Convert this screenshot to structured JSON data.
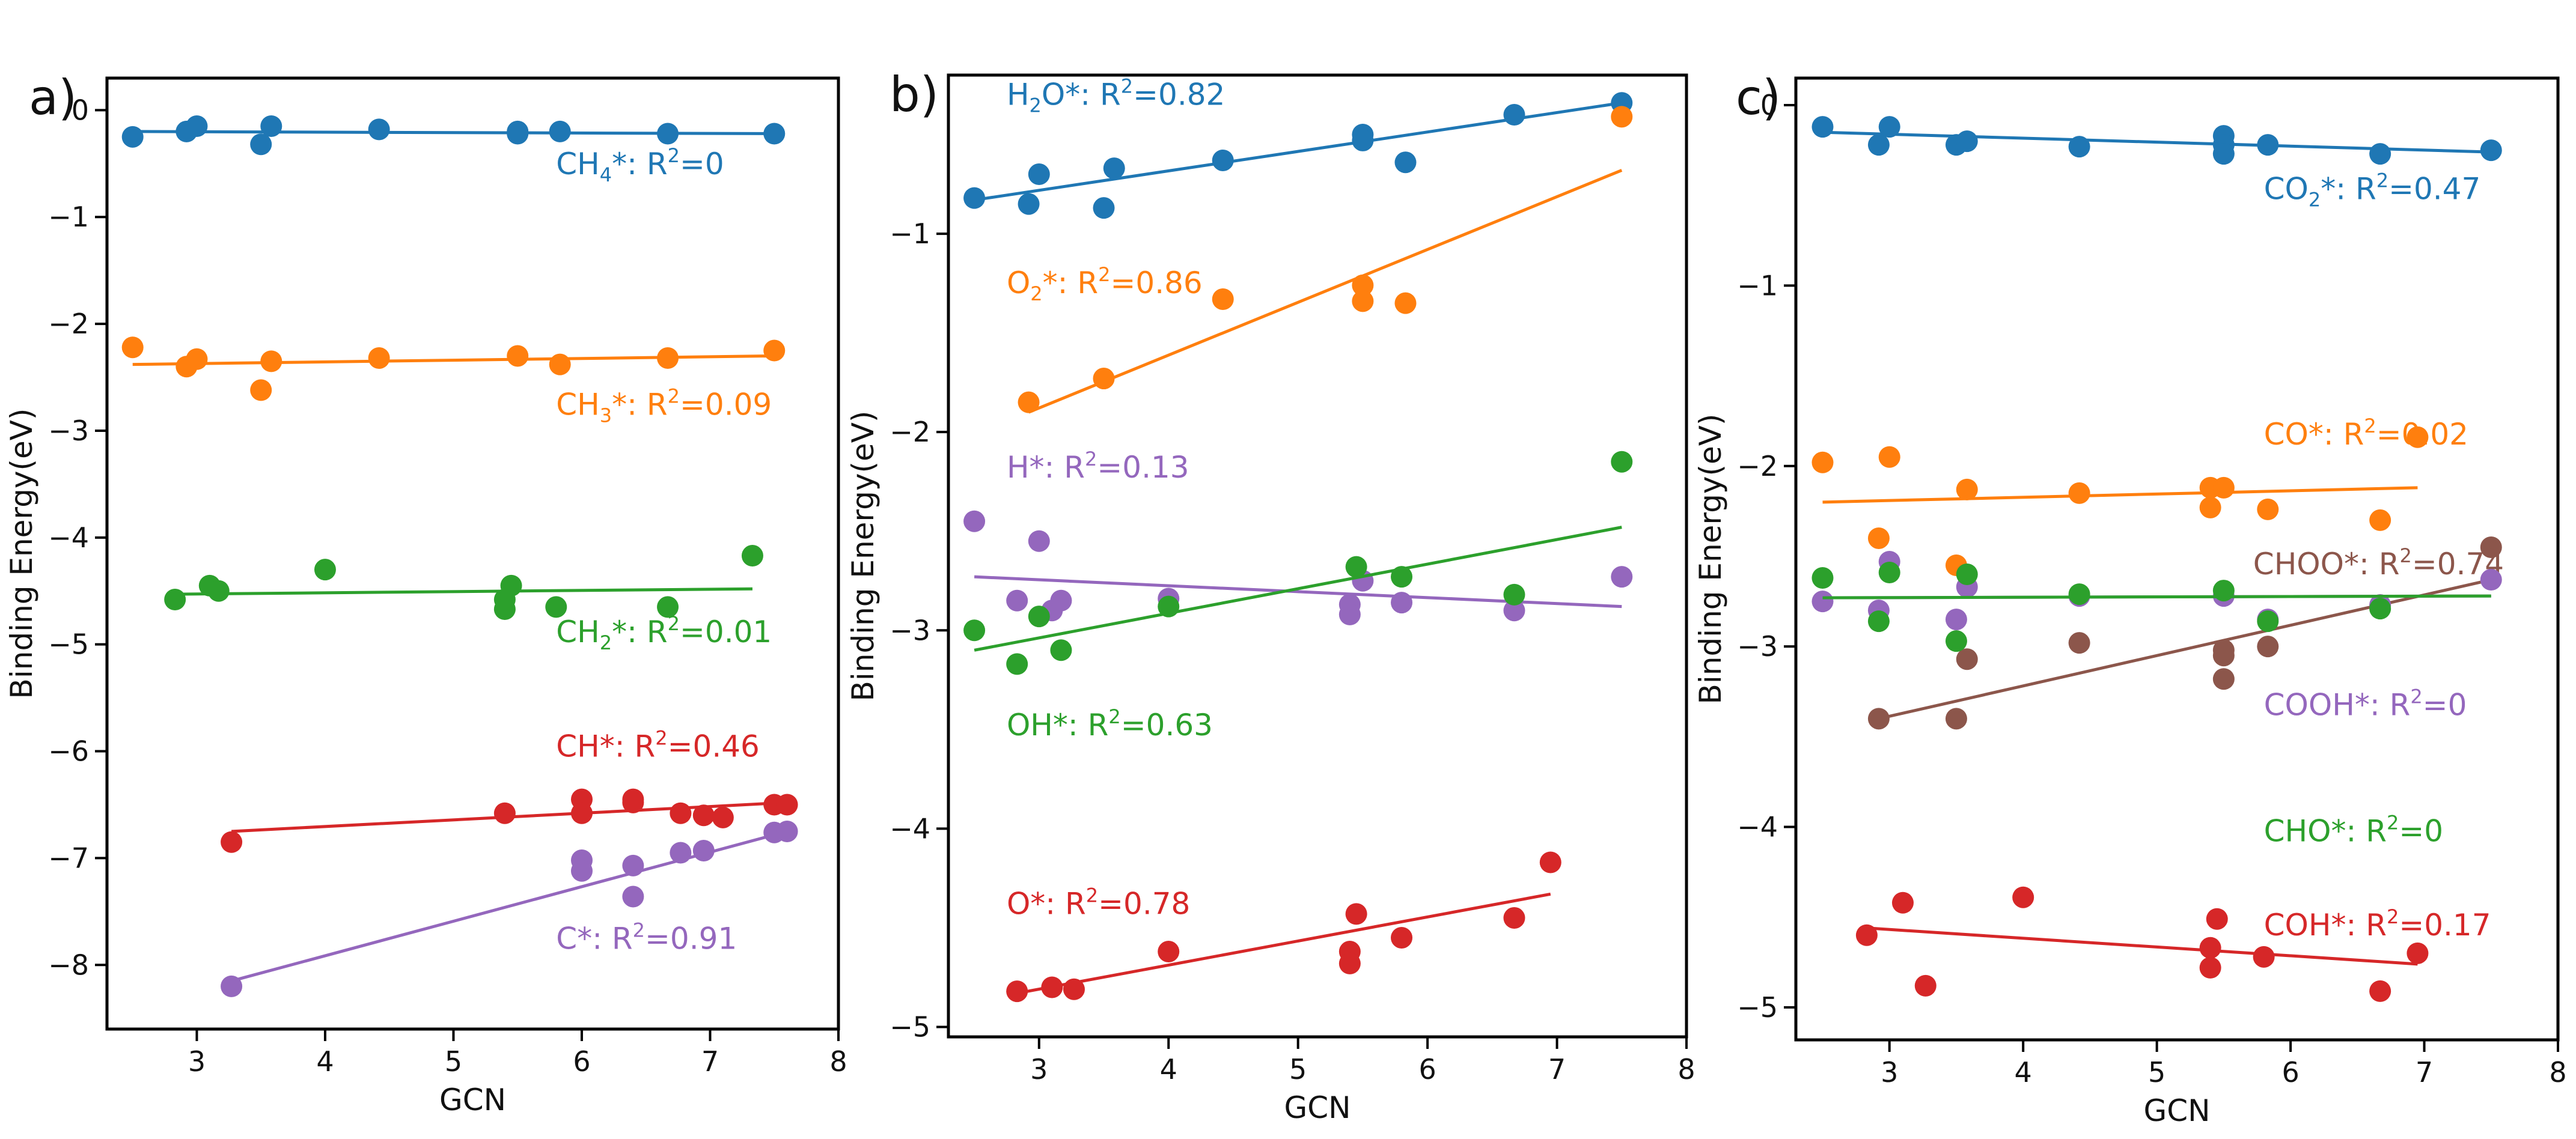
{
  "colors": {
    "blue": "#1f77b4",
    "orange": "#ff7f0e",
    "green": "#2ca02c",
    "red": "#d62728",
    "purple": "#9467bd",
    "brown": "#8c564b"
  },
  "chart_data": [
    {
      "type": "scatter",
      "panel_label": "a)",
      "xlabel": "GCN",
      "ylabel": "Binding Energy(eV)",
      "xlim": [
        2.3,
        8.0
      ],
      "ylim": [
        -8.6,
        0.3
      ],
      "xticks": [
        3,
        4,
        5,
        6,
        7,
        8
      ],
      "yticks": [
        0,
        -1,
        -2,
        -3,
        -4,
        -5,
        -6,
        -7,
        -8
      ],
      "xtick_labels": [
        "3",
        "4",
        "5",
        "6",
        "7",
        "8"
      ],
      "ytick_labels": [
        "0",
        "−1",
        "−2",
        "−3",
        "−4",
        "−5",
        "−6",
        "−7",
        "−8"
      ],
      "series": [
        {
          "name": "CH4*",
          "label": {
            "pre": "CH",
            "sub": "4",
            "mid": "*: R",
            "sup": "2",
            "post": "=0"
          },
          "label_pos": [
            5.8,
            -0.6
          ],
          "color": "blue",
          "x": [
            2.5,
            2.92,
            3.0,
            3.5,
            3.58,
            4.42,
            5.5,
            5.5,
            5.83,
            6.67,
            7.5
          ],
          "y": [
            -0.25,
            -0.2,
            -0.15,
            -0.32,
            -0.15,
            -0.18,
            -0.2,
            -0.22,
            -0.2,
            -0.22,
            -0.22
          ],
          "fit": [
            [
              2.5,
              -0.2
            ],
            [
              7.5,
              -0.22
            ]
          ]
        },
        {
          "name": "CH3*",
          "label": {
            "pre": "CH",
            "sub": "3",
            "mid": "*: R",
            "sup": "2",
            "post": "=0.09"
          },
          "label_pos": [
            5.8,
            -2.85
          ],
          "color": "orange",
          "x": [
            2.5,
            2.92,
            3.0,
            3.5,
            3.58,
            4.42,
            5.5,
            5.83,
            6.67,
            7.5
          ],
          "y": [
            -2.22,
            -2.4,
            -2.33,
            -2.62,
            -2.35,
            -2.32,
            -2.3,
            -2.38,
            -2.32,
            -2.25
          ],
          "fit": [
            [
              2.5,
              -2.38
            ],
            [
              7.5,
              -2.3
            ]
          ]
        },
        {
          "name": "CH2*",
          "label": {
            "pre": "CH",
            "sub": "2",
            "mid": "*: R",
            "sup": "2",
            "post": "=0.01"
          },
          "label_pos": [
            5.8,
            -4.98
          ],
          "color": "green",
          "x": [
            2.83,
            3.1,
            3.17,
            4.0,
            5.4,
            5.4,
            5.45,
            5.8,
            6.67,
            7.33
          ],
          "y": [
            -4.58,
            -4.45,
            -4.5,
            -4.3,
            -4.58,
            -4.67,
            -4.45,
            -4.65,
            -4.65,
            -4.17
          ],
          "fit": [
            [
              2.83,
              -4.53
            ],
            [
              7.33,
              -4.48
            ]
          ]
        },
        {
          "name": "CH*",
          "label": {
            "pre": "CH",
            "sub": "",
            "mid": "*: R",
            "sup": "2",
            "post": "=0.46"
          },
          "label_pos": [
            5.8,
            -6.05
          ],
          "color": "red",
          "x": [
            3.27,
            5.4,
            6.0,
            6.0,
            6.4,
            6.4,
            6.77,
            6.95,
            7.1,
            7.5,
            7.6
          ],
          "y": [
            -6.85,
            -6.58,
            -6.45,
            -6.58,
            -6.45,
            -6.48,
            -6.58,
            -6.6,
            -6.62,
            -6.5,
            -6.5
          ],
          "fit": [
            [
              3.27,
              -6.75
            ],
            [
              7.6,
              -6.48
            ]
          ]
        },
        {
          "name": "C*",
          "label": {
            "pre": "C",
            "sub": "",
            "mid": "*: R",
            "sup": "2",
            "post": "=0.91"
          },
          "label_pos": [
            5.8,
            -7.85
          ],
          "color": "purple",
          "x": [
            3.27,
            6.0,
            6.0,
            6.4,
            6.4,
            6.77,
            6.95,
            7.5,
            7.6
          ],
          "y": [
            -8.2,
            -7.02,
            -7.12,
            -7.07,
            -7.36,
            -6.95,
            -6.93,
            -6.76,
            -6.75
          ],
          "fit": [
            [
              3.27,
              -8.15
            ],
            [
              7.6,
              -6.75
            ]
          ]
        }
      ]
    },
    {
      "type": "scatter",
      "panel_label": "b)",
      "xlabel": "GCN",
      "ylabel": "Binding Energy(eV)",
      "xlim": [
        2.3,
        8.0
      ],
      "ylim": [
        -5.05,
        -0.2
      ],
      "xticks": [
        3,
        4,
        5,
        6,
        7,
        8
      ],
      "yticks": [
        -1,
        -2,
        -3,
        -4,
        -5
      ],
      "xtick_labels": [
        "3",
        "4",
        "5",
        "6",
        "7",
        "8"
      ],
      "ytick_labels": [
        "−1",
        "−2",
        "−3",
        "−4",
        "−5"
      ],
      "series": [
        {
          "name": "H2O*",
          "label": {
            "pre": "H",
            "sub": "2",
            "mid": "O*: R",
            "sup": "2",
            "post": "=0.82"
          },
          "label_pos": [
            2.75,
            -0.35
          ],
          "color": "blue",
          "x": [
            2.5,
            2.92,
            3.0,
            3.5,
            3.58,
            4.42,
            5.5,
            5.5,
            5.83,
            6.67,
            7.5
          ],
          "y": [
            -0.82,
            -0.85,
            -0.7,
            -0.87,
            -0.67,
            -0.63,
            -0.5,
            -0.53,
            -0.64,
            -0.4,
            -0.34
          ],
          "fit": [
            [
              2.5,
              -0.83
            ],
            [
              7.5,
              -0.34
            ]
          ]
        },
        {
          "name": "O2*",
          "label": {
            "pre": "O",
            "sub": "2",
            "mid": "*: R",
            "sup": "2",
            "post": "=0.86"
          },
          "label_pos": [
            2.75,
            -1.3
          ],
          "color": "orange",
          "x": [
            2.92,
            3.5,
            4.42,
            5.5,
            5.5,
            5.83,
            7.5
          ],
          "y": [
            -1.85,
            -1.73,
            -1.33,
            -1.26,
            -1.34,
            -1.35,
            -0.41
          ],
          "fit": [
            [
              2.92,
              -1.9
            ],
            [
              7.5,
              -0.68
            ]
          ]
        },
        {
          "name": "H*",
          "label": {
            "pre": "H",
            "sub": "",
            "mid": "*: R",
            "sup": "2",
            "post": "=0.13"
          },
          "label_pos": [
            2.75,
            -2.23
          ],
          "color": "purple",
          "x": [
            2.5,
            2.83,
            3.0,
            3.1,
            3.17,
            4.0,
            5.4,
            5.4,
            5.5,
            5.8,
            6.67,
            7.5
          ],
          "y": [
            -2.45,
            -2.85,
            -2.55,
            -2.9,
            -2.85,
            -2.84,
            -2.87,
            -2.92,
            -2.75,
            -2.86,
            -2.9,
            -2.73
          ],
          "fit": [
            [
              2.5,
              -2.73
            ],
            [
              7.5,
              -2.88
            ]
          ]
        },
        {
          "name": "OH*",
          "label": {
            "pre": "OH",
            "sub": "",
            "mid": "*: R",
            "sup": "2",
            "post": "=0.63"
          },
          "label_pos": [
            2.75,
            -3.53
          ],
          "color": "green",
          "x": [
            2.5,
            2.83,
            3.0,
            3.17,
            4.0,
            5.45,
            5.8,
            6.67,
            7.5
          ],
          "y": [
            -3.0,
            -3.17,
            -2.93,
            -3.1,
            -2.88,
            -2.68,
            -2.73,
            -2.82,
            -2.15
          ],
          "fit": [
            [
              2.5,
              -3.1
            ],
            [
              7.5,
              -2.48
            ]
          ]
        },
        {
          "name": "O*",
          "label": {
            "pre": "O",
            "sub": "",
            "mid": "*: R",
            "sup": "2",
            "post": "=0.78"
          },
          "label_pos": [
            2.75,
            -4.43
          ],
          "color": "red",
          "x": [
            2.83,
            3.1,
            3.27,
            4.0,
            5.4,
            5.4,
            5.45,
            5.8,
            6.67,
            6.95
          ],
          "y": [
            -4.82,
            -4.8,
            -4.81,
            -4.62,
            -4.62,
            -4.68,
            -4.43,
            -4.55,
            -4.45,
            -4.17
          ],
          "fit": [
            [
              2.83,
              -4.83
            ],
            [
              6.95,
              -4.33
            ]
          ]
        }
      ]
    },
    {
      "type": "scatter",
      "panel_label": "c)",
      "xlabel": "GCN",
      "ylabel": "Binding Energy(eV)",
      "xlim": [
        2.3,
        8.0
      ],
      "ylim": [
        -5.18,
        0.15
      ],
      "xticks": [
        3,
        4,
        5,
        6,
        7,
        8
      ],
      "yticks": [
        0,
        -1,
        -2,
        -3,
        -4,
        -5
      ],
      "xtick_labels": [
        "3",
        "4",
        "5",
        "6",
        "7",
        "8"
      ],
      "ytick_labels": [
        "0",
        "−1",
        "−2",
        "−3",
        "−4",
        "−5"
      ],
      "series": [
        {
          "name": "CO2*",
          "label": {
            "pre": "CO",
            "sub": "2",
            "mid": "*: R",
            "sup": "2",
            "post": "=0.47"
          },
          "label_pos": [
            5.8,
            -0.52
          ],
          "color": "blue",
          "x": [
            2.5,
            2.92,
            3.0,
            3.5,
            3.58,
            4.42,
            5.5,
            5.5,
            5.5,
            5.83,
            6.67,
            7.5
          ],
          "y": [
            -0.12,
            -0.22,
            -0.12,
            -0.22,
            -0.2,
            -0.23,
            -0.17,
            -0.22,
            -0.27,
            -0.22,
            -0.27,
            -0.25
          ],
          "fit": [
            [
              2.5,
              -0.15
            ],
            [
              7.5,
              -0.26
            ]
          ]
        },
        {
          "name": "CO*",
          "label": {
            "pre": "CO",
            "sub": "",
            "mid": "*: R",
            "sup": "2",
            "post": "=0.02"
          },
          "label_pos": [
            5.8,
            -1.88
          ],
          "color": "orange",
          "x": [
            2.5,
            2.92,
            3.0,
            3.5,
            3.58,
            4.42,
            5.4,
            5.4,
            5.5,
            5.83,
            6.67,
            6.95
          ],
          "y": [
            -1.98,
            -2.4,
            -1.95,
            -2.55,
            -2.13,
            -2.15,
            -2.12,
            -2.23,
            -2.12,
            -2.24,
            -2.3,
            -1.84
          ],
          "fit": [
            [
              2.5,
              -2.2
            ],
            [
              6.95,
              -2.12
            ]
          ]
        },
        {
          "name": "CHOO*",
          "label": {
            "pre": "CHOO",
            "sub": "",
            "mid": "*: R",
            "sup": "2",
            "post": "=0.74"
          },
          "label_pos": [
            5.72,
            -2.6
          ],
          "color": "brown",
          "x": [
            2.92,
            3.5,
            3.58,
            4.42,
            5.5,
            5.5,
            5.5,
            5.83,
            6.67,
            7.5
          ],
          "y": [
            -3.4,
            -3.4,
            -3.07,
            -2.98,
            -3.02,
            -3.05,
            -3.18,
            -3.0,
            -2.77,
            -2.45
          ],
          "fit": [
            [
              2.92,
              -3.4
            ],
            [
              7.5,
              -2.63
            ]
          ]
        },
        {
          "name": "COOH*",
          "label": {
            "pre": "COOH",
            "sub": "",
            "mid": "*: R",
            "sup": "2",
            "post": "=0"
          },
          "label_pos": [
            5.8,
            -3.38
          ],
          "color": "purple",
          "x": [
            2.5,
            2.92,
            3.0,
            3.5,
            3.58,
            4.42,
            5.5,
            5.83,
            6.67,
            7.5
          ],
          "y": [
            -2.75,
            -2.8,
            -2.53,
            -2.85,
            -2.67,
            -2.72,
            -2.72,
            -2.85,
            -2.77,
            -2.63
          ],
          "fit": [
            [
              2.5,
              -2.73
            ],
            [
              7.5,
              -2.72
            ]
          ]
        },
        {
          "name": "CHO*",
          "label": {
            "pre": "CHO",
            "sub": "",
            "mid": "*: R",
            "sup": "2",
            "post": "=0"
          },
          "label_pos": [
            5.8,
            -4.08
          ],
          "color": "green",
          "x": [
            2.5,
            2.92,
            3.0,
            3.5,
            3.58,
            4.42,
            5.5,
            5.83,
            6.67
          ],
          "y": [
            -2.62,
            -2.86,
            -2.59,
            -2.97,
            -2.6,
            -2.71,
            -2.69,
            -2.86,
            -2.79
          ],
          "fit": [
            [
              2.5,
              -2.73
            ],
            [
              7.5,
              -2.72
            ]
          ]
        },
        {
          "name": "COH*",
          "label": {
            "pre": "COH",
            "sub": "",
            "mid": "*: R",
            "sup": "2",
            "post": "=0.17"
          },
          "label_pos": [
            5.8,
            -4.6
          ],
          "color": "red",
          "x": [
            2.83,
            3.1,
            3.27,
            4.0,
            5.4,
            5.4,
            5.45,
            5.8,
            6.67,
            6.95
          ],
          "y": [
            -4.6,
            -4.42,
            -4.88,
            -4.39,
            -4.67,
            -4.78,
            -4.51,
            -4.72,
            -4.91,
            -4.7
          ],
          "fit": [
            [
              2.83,
              -4.56
            ],
            [
              6.95,
              -4.76
            ]
          ]
        }
      ]
    }
  ]
}
